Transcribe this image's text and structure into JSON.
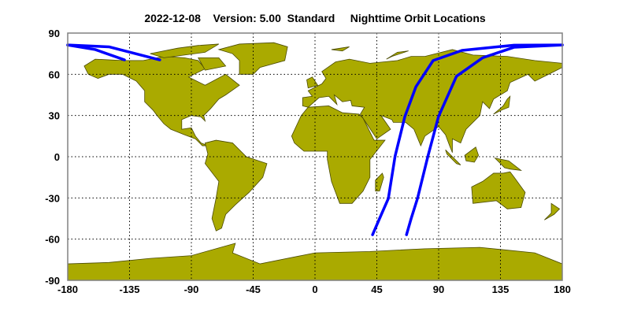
{
  "title": "2022-12-08    Version: 5.00  Standard     Nighttime Orbit Locations",
  "colors": {
    "land": "#aaaa00",
    "coast": "#4a4a00",
    "orbit": "#0000ff",
    "grid": "#000000",
    "frame": "#808080"
  },
  "chart_data": {
    "type": "map",
    "projection": "equirectangular",
    "title": "2022-12-08    Version: 5.00  Standard     Nighttime Orbit Locations",
    "xlim": [
      -180,
      180
    ],
    "ylim": [
      -90,
      90
    ],
    "xticks": [
      -180,
      -135,
      -90,
      -45,
      0,
      45,
      90,
      135,
      180
    ],
    "yticks": [
      90,
      60,
      30,
      0,
      -30,
      -60,
      -90
    ],
    "grid": true,
    "series": [
      {
        "lonlat": [
          [
            41.9,
            -56.8
          ],
          [
            47,
            -45
          ],
          [
            53.4,
            -30.4
          ],
          [
            58.3,
            0.4
          ],
          [
            65.4,
            29.2
          ],
          [
            73.5,
            51
          ],
          [
            86,
            70
          ],
          [
            107,
            77.4
          ],
          [
            145,
            81.2
          ],
          [
            180,
            81.3
          ],
          [
            -180,
            81.3
          ],
          [
            -160,
            78
          ],
          [
            -138.7,
            70.5
          ]
        ]
      },
      {
        "lonlat": [
          [
            66.6,
            -56.8
          ],
          [
            70,
            -45
          ],
          [
            74.6,
            -30.4
          ],
          [
            82.2,
            0.4
          ],
          [
            89.9,
            29.2
          ],
          [
            103,
            58.6
          ],
          [
            122,
            72
          ],
          [
            145,
            79.7
          ],
          [
            180,
            81.3
          ],
          [
            -180,
            81.3
          ],
          [
            -150,
            80
          ],
          [
            -113,
            70.5
          ]
        ]
      }
    ]
  }
}
